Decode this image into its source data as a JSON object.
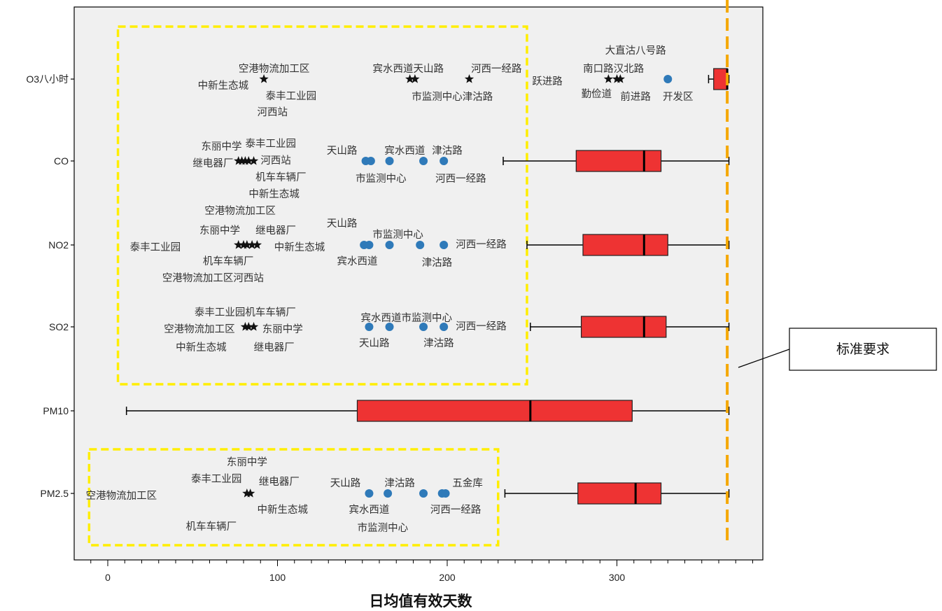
{
  "chart_data": {
    "type": "box",
    "xlabel": "日均值有效天数",
    "ylabel": "",
    "xlim": [
      -20,
      385
    ],
    "x_ticks": [
      0,
      100,
      200,
      300
    ],
    "categories": [
      "O3八小时",
      "CO",
      "NO2",
      "SO2",
      "PM10",
      "PM2.5"
    ],
    "boxes": [
      {
        "category": "O3八小时",
        "whisker_low": 354,
        "q1": 357,
        "median": 365,
        "q3": 365,
        "whisker_high": 366
      },
      {
        "category": "CO",
        "whisker_low": 233,
        "q1": 276,
        "median": 316,
        "q3": 326,
        "whisker_high": 366
      },
      {
        "category": "NO2",
        "whisker_low": 247,
        "q1": 280,
        "median": 316,
        "q3": 330,
        "whisker_high": 366
      },
      {
        "category": "SO2",
        "whisker_low": 249,
        "q1": 279,
        "median": 316,
        "q3": 329,
        "whisker_high": 366
      },
      {
        "category": "PM10",
        "whisker_low": 11,
        "q1": 147,
        "median": 249,
        "q3": 309,
        "whisker_high": 366
      },
      {
        "category": "PM2.5",
        "whisker_low": 234,
        "q1": 277,
        "median": 311,
        "q3": 326,
        "whisker_high": 366
      }
    ],
    "outliers": [
      {
        "category": "O3八小时",
        "marker": "star",
        "values": [
          92,
          178,
          181,
          213,
          295,
          300,
          302
        ]
      },
      {
        "category": "O3八小时",
        "marker": "circle",
        "values": [
          330
        ]
      },
      {
        "category": "CO",
        "marker": "star",
        "values": [
          77,
          79,
          81,
          83,
          86
        ]
      },
      {
        "category": "CO",
        "marker": "circle",
        "values": [
          152,
          155,
          166,
          186,
          198
        ]
      },
      {
        "category": "NO2",
        "marker": "star",
        "values": [
          77,
          80,
          82,
          85,
          88
        ]
      },
      {
        "category": "NO2",
        "marker": "circle",
        "values": [
          151,
          154,
          166,
          184,
          198
        ]
      },
      {
        "category": "SO2",
        "marker": "star",
        "values": [
          81,
          83,
          86
        ]
      },
      {
        "category": "SO2",
        "marker": "circle",
        "values": [
          154,
          166,
          186,
          198
        ]
      },
      {
        "category": "PM2.5",
        "marker": "star",
        "values": [
          82,
          84
        ]
      },
      {
        "category": "PM2.5",
        "marker": "circle",
        "values": [
          154,
          165,
          186,
          197,
          199
        ]
      }
    ],
    "reference_line": {
      "x": 365,
      "color": "#f5a800",
      "style": "dashed"
    },
    "highlight_boxes": [
      {
        "x_from": 6,
        "x_to": 247,
        "y_from_category": "O3八小时",
        "y_to_category": "SO2",
        "color": "#ffee00"
      },
      {
        "x_from": -11,
        "x_to": 230,
        "y_from_category": "PM2.5",
        "y_to_category": "PM2.5",
        "color": "#ffee00"
      }
    ],
    "annotations": [
      {
        "text": "空港物流加工区",
        "x": 98,
        "row": "O3八小时",
        "dy": -14
      },
      {
        "text": "中新生态城",
        "x": 68,
        "row": "O3八小时",
        "dy": 10
      },
      {
        "text": "泰丰工业园",
        "x": 108,
        "row": "O3八小时",
        "dy": 25
      },
      {
        "text": "河西站",
        "x": 97,
        "row": "O3八小时",
        "dy": 48
      },
      {
        "text": "宾水西道天山路",
        "x": 177,
        "row": "O3八小时",
        "dy": -14
      },
      {
        "text": "河西一经路",
        "x": 229,
        "row": "O3八小时",
        "dy": -14
      },
      {
        "text": "市监测中心津沽路",
        "x": 203,
        "row": "O3八小时",
        "dy": 26
      },
      {
        "text": "大直沽八号路",
        "x": 311,
        "row": "O3八小时",
        "dy": -40
      },
      {
        "text": "跃进路",
        "x": 259,
        "row": "O3八小时",
        "dy": 4
      },
      {
        "text": "南口路汉北路",
        "x": 298,
        "row": "O3八小时",
        "dy": -14
      },
      {
        "text": "勤俭道",
        "x": 288,
        "row": "O3八小时",
        "dy": 22
      },
      {
        "text": "前进路",
        "x": 311,
        "row": "O3八小时",
        "dy": 26
      },
      {
        "text": "开发区",
        "x": 336,
        "row": "O3八小时",
        "dy": 26
      },
      {
        "text": "东丽中学",
        "x": 67,
        "row": "CO",
        "dy": -20
      },
      {
        "text": "泰丰工业园",
        "x": 96,
        "row": "CO",
        "dy": -24
      },
      {
        "text": "继电器厂",
        "x": 62,
        "row": "CO",
        "dy": 4
      },
      {
        "text": "河西站",
        "x": 99,
        "row": "CO",
        "dy": 0
      },
      {
        "text": "机车车辆厂",
        "x": 102,
        "row": "CO",
        "dy": 24
      },
      {
        "text": "中新生态城",
        "x": 98,
        "row": "CO",
        "dy": 48
      },
      {
        "text": "天山路",
        "x": 138,
        "row": "CO",
        "dy": -14
      },
      {
        "text": "宾水西道",
        "x": 175,
        "row": "CO",
        "dy": -14
      },
      {
        "text": "津沽路",
        "x": 200,
        "row": "CO",
        "dy": -14
      },
      {
        "text": "市监测中心",
        "x": 161,
        "row": "CO",
        "dy": 26
      },
      {
        "text": "河西一经路",
        "x": 208,
        "row": "CO",
        "dy": 26
      },
      {
        "text": "空港物流加工区",
        "x": 78,
        "row": "NO2",
        "dy": -48
      },
      {
        "text": "东丽中学",
        "x": 66,
        "row": "NO2",
        "dy": -20
      },
      {
        "text": "继电器厂",
        "x": 99,
        "row": "NO2",
        "dy": -20
      },
      {
        "text": "天山路",
        "x": 138,
        "row": "NO2",
        "dy": -30
      },
      {
        "text": "市监测中心",
        "x": 171,
        "row": "NO2",
        "dy": -14
      },
      {
        "text": "泰丰工业园",
        "x": 28,
        "row": "NO2",
        "dy": 4
      },
      {
        "text": "中新生态城",
        "x": 113,
        "row": "NO2",
        "dy": 4
      },
      {
        "text": "河西一经路",
        "x": 220,
        "row": "NO2",
        "dy": 0
      },
      {
        "text": "机车车辆厂",
        "x": 71,
        "row": "NO2",
        "dy": 24
      },
      {
        "text": "宾水西道",
        "x": 147,
        "row": "NO2",
        "dy": 24
      },
      {
        "text": "津沽路",
        "x": 194,
        "row": "NO2",
        "dy": 26
      },
      {
        "text": "空港物流加工区河西站",
        "x": 62,
        "row": "NO2",
        "dy": 48
      },
      {
        "text": "泰丰工业园机车车辆厂",
        "x": 81,
        "row": "SO2",
        "dy": -20
      },
      {
        "text": "宾水西道市监测中心",
        "x": 176,
        "row": "SO2",
        "dy": -12
      },
      {
        "text": "空港物流加工区",
        "x": 54,
        "row": "SO2",
        "dy": 4
      },
      {
        "text": "东丽中学",
        "x": 103,
        "row": "SO2",
        "dy": 4
      },
      {
        "text": "河西一经路",
        "x": 220,
        "row": "SO2",
        "dy": 0
      },
      {
        "text": "中新生态城",
        "x": 55,
        "row": "SO2",
        "dy": 30
      },
      {
        "text": "继电器厂",
        "x": 98,
        "row": "SO2",
        "dy": 30
      },
      {
        "text": "天山路",
        "x": 157,
        "row": "SO2",
        "dy": 24
      },
      {
        "text": "津沽路",
        "x": 195,
        "row": "SO2",
        "dy": 24
      },
      {
        "text": "东丽中学",
        "x": 82,
        "row": "PM2.5",
        "dy": -44
      },
      {
        "text": "泰丰工业园",
        "x": 64,
        "row": "PM2.5",
        "dy": -20
      },
      {
        "text": "继电器厂",
        "x": 101,
        "row": "PM2.5",
        "dy": -16
      },
      {
        "text": "天山路",
        "x": 140,
        "row": "PM2.5",
        "dy": -14
      },
      {
        "text": "津沽路",
        "x": 172,
        "row": "PM2.5",
        "dy": -14
      },
      {
        "text": "五金库",
        "x": 212,
        "row": "PM2.5",
        "dy": -14
      },
      {
        "text": "空港物流加工区",
        "x": 8,
        "row": "PM2.5",
        "dy": 4
      },
      {
        "text": "中新生态城",
        "x": 103,
        "row": "PM2.5",
        "dy": 24
      },
      {
        "text": "宾水西道",
        "x": 154,
        "row": "PM2.5",
        "dy": 24
      },
      {
        "text": "河西一经路",
        "x": 205,
        "row": "PM2.5",
        "dy": 24
      },
      {
        "text": "机车车辆厂",
        "x": 61,
        "row": "PM2.5",
        "dy": 48
      },
      {
        "text": "市监测中心",
        "x": 162,
        "row": "PM2.5",
        "dy": 50
      }
    ],
    "callout": {
      "text": "标准要求"
    },
    "colors": {
      "box_fill": "#ee3333",
      "plot_background": "#f0f0f0",
      "circle_marker": "#2f7ab9",
      "star_marker": "#111111"
    }
  }
}
